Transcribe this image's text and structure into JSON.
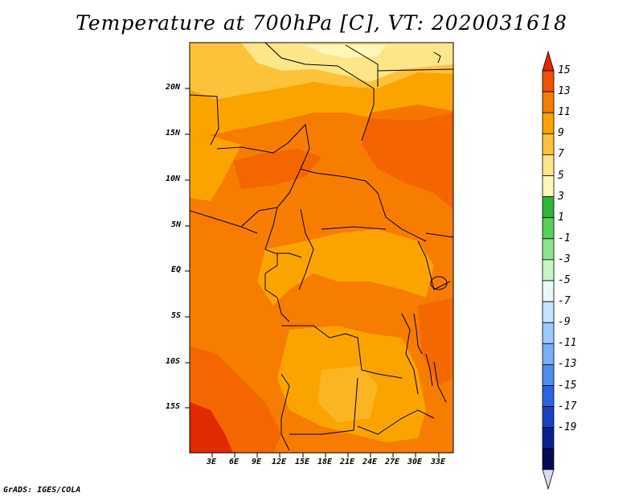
{
  "title": "Temperature at 700hPa [C], VT: 2020031618",
  "credit": "GrADS: IGES/COLA",
  "map": {
    "lon_range": [
      0,
      35
    ],
    "lat_range": [
      -20,
      24
    ],
    "lat_ticks": [
      "20N",
      "15N",
      "10N",
      "5N",
      "EQ",
      "5S",
      "10S",
      "15S"
    ],
    "lon_ticks": [
      "3E",
      "6E",
      "9E",
      "12E",
      "15E",
      "18E",
      "21E",
      "24E",
      "27E",
      "30E",
      "33E"
    ]
  },
  "colorbar": {
    "labels": [
      "15",
      "13",
      "11",
      "9",
      "7",
      "5",
      "3",
      "1",
      "-1",
      "-3",
      "-5",
      "-7",
      "-9",
      "-11",
      "-13",
      "-15",
      "-17",
      "-19"
    ],
    "colors": [
      "#e02a00",
      "#f25000",
      "#f67d00",
      "#fba400",
      "#fcc23a",
      "#fde58a",
      "#fff7b8",
      "#2fb53a",
      "#5acd5a",
      "#8fe28f",
      "#c8f4c8",
      "#e9f9f9",
      "#c4e4ff",
      "#9cc9ff",
      "#78aff8",
      "#4f8cf0",
      "#2b65df",
      "#1742c2",
      "#0c1f8f",
      "#050a55",
      "#d9d9f5"
    ]
  }
}
